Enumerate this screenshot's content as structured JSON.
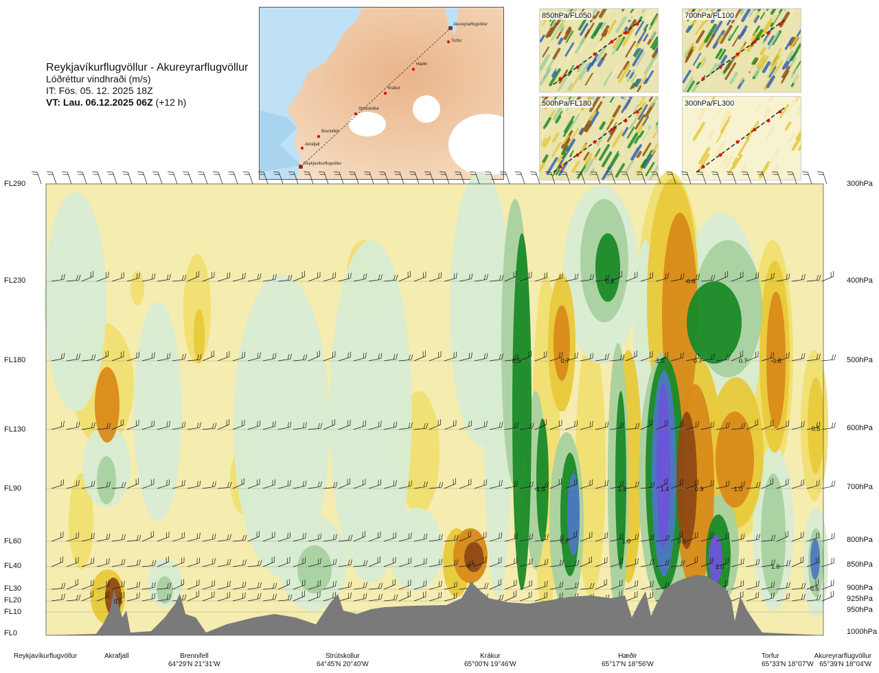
{
  "title": {
    "route": "Reykjavíkurflugvöllur - Akureyrarflugvöllur",
    "parameter": "Lóðréttur vindhraði (m/s)",
    "issue_time": "IT: Fös. 05. 12. 2025 18Z",
    "valid_time": "VT: Lau. 06.12.2025 06Z",
    "lead": "(+12 h)"
  },
  "insets": [
    "850hPa/FL050",
    "700hPa/FL100",
    "500hPa/FL180",
    "300hPa/FL300"
  ],
  "route_map": {
    "waypoints": [
      "Akureyrarflugvöllur",
      "Torfur",
      "Hæðir",
      "Krákur",
      "Strútskollur",
      "Brennifell",
      "Akrafjall",
      "Reykjavíkurflugvöllur"
    ]
  },
  "levels": [
    {
      "fl": "FL290",
      "hpa": "300hPa"
    },
    {
      "fl": "FL230",
      "hpa": "400hPa"
    },
    {
      "fl": "FL180",
      "hpa": "500hPa"
    },
    {
      "fl": "FL130",
      "hpa": "600hPa"
    },
    {
      "fl": "FL90",
      "hpa": "700hPa"
    },
    {
      "fl": "FL60",
      "hpa": "800hPa"
    },
    {
      "fl": "FL40",
      "hpa": "850hPa"
    },
    {
      "fl": "FL30",
      "hpa": "900hPa"
    },
    {
      "fl": "FL20",
      "hpa": "925hPa"
    },
    {
      "fl": "FL10",
      "hpa": "950hPa"
    },
    {
      "fl": "FL0",
      "hpa": "1000hPa"
    }
  ],
  "waypoints": [
    {
      "name": "Reykjavíkurflugvöllur",
      "coord": ""
    },
    {
      "name": "Akrafjall",
      "coord": ""
    },
    {
      "name": "Brennifell",
      "coord": "64°29'N 21°31'W"
    },
    {
      "name": "Strútskollur",
      "coord": "64°45'N 20°40'W"
    },
    {
      "name": "Krákur",
      "coord": "65°00'N 19°46'W"
    },
    {
      "name": "Hæðir",
      "coord": "65°17'N 18°56'W"
    },
    {
      "name": "Torfur",
      "coord": "65°33'N 18°07'W"
    },
    {
      "name": "Akureyrarflugvöllur",
      "coord": "65°39'N 18°04'W"
    }
  ],
  "contour_labels": [
    "0.6",
    "0.7",
    "0.5",
    "0.7",
    "-1.0",
    "0.7",
    "0.7",
    "-0.8",
    "0.8",
    "-0.6",
    "0.5",
    "-1.5",
    "1.8",
    "1.4",
    "0.9",
    "1.0",
    "0.7",
    "1.0",
    "0.6",
    "1.0",
    "1.0",
    "0.5"
  ],
  "colors": {
    "up_weak": "#d8ecd3",
    "up_mid": "#a9d1a0",
    "up_strong": "#1a8a28",
    "up_max": "#4b79c2",
    "up_extreme": "#6b55d8",
    "down_weak": "#f5ecb0",
    "down_mid": "#e8c93a",
    "down_strong": "#d98a1a",
    "down_max": "#8f4a14",
    "terrain": "#7a7a7a"
  }
}
